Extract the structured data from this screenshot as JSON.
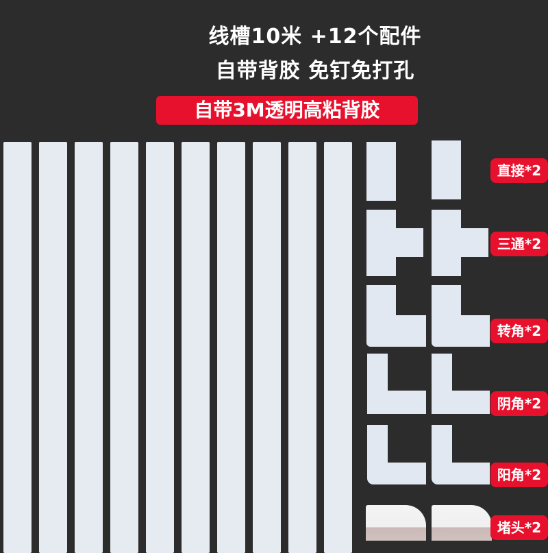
{
  "header": {
    "line1": "线槽10米 +12个配件",
    "line2": "自带背胶  免钉免打孔",
    "banner": "自带3M透明高粘背胶"
  },
  "colors": {
    "background": "#2c2c2c",
    "accent_red": "#e8112d",
    "piece": "#e2e8f1"
  },
  "strip_count": 10,
  "fittings": [
    {
      "label": "直接*2"
    },
    {
      "label": "三通*2"
    },
    {
      "label": "转角*2"
    },
    {
      "label": "阴角*2"
    },
    {
      "label": "阳角*2"
    },
    {
      "label": "堵头*2"
    }
  ]
}
